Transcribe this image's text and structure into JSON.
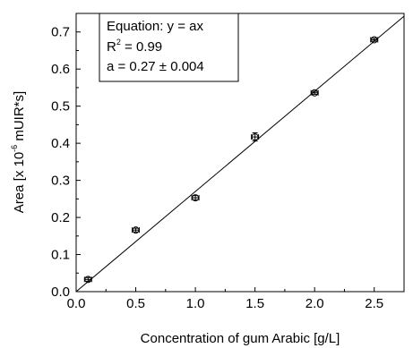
{
  "chart_data": {
    "type": "scatter",
    "title": "",
    "xlabel": "Concentration of gum Arabic [g/L]",
    "ylabel": {
      "prefix": "Area [x 10",
      "exponent": "-6",
      "suffix": " mUIR*s]"
    },
    "xlim": [
      0.0,
      2.75
    ],
    "ylim": [
      0.0,
      0.75
    ],
    "x_ticks": [
      "0.0",
      "0.5",
      "1.0",
      "1.5",
      "2.0",
      "2.5"
    ],
    "x_tick_values": [
      0.0,
      0.5,
      1.0,
      1.5,
      2.0,
      2.5
    ],
    "y_ticks": [
      "0.0",
      "0.1",
      "0.2",
      "0.3",
      "0.4",
      "0.5",
      "0.6",
      "0.7"
    ],
    "y_tick_values": [
      0.0,
      0.1,
      0.2,
      0.3,
      0.4,
      0.5,
      0.6,
      0.7
    ],
    "series": [
      {
        "x": [
          0.1,
          0.5,
          1.0,
          1.5,
          2.0,
          2.5
        ],
        "y": [
          0.033,
          0.166,
          0.253,
          0.417,
          0.536,
          0.679
        ],
        "yerr": [
          0.005,
          0.005,
          0.006,
          0.011,
          0.004,
          0.004
        ],
        "xerr": [
          0.03,
          0.03,
          0.03,
          0.03,
          0.03,
          0.03
        ]
      }
    ],
    "fit": {
      "type": "line",
      "slope": 0.27,
      "intercept": 0.0
    },
    "annotation": {
      "line1": "Equation: y = ax",
      "line2_prefix": "R",
      "line2_sup": "2",
      "line2_suffix": " = 0.99",
      "line3": "a = 0.27 ± 0.004",
      "placement": "top-left"
    },
    "grid": false
  }
}
